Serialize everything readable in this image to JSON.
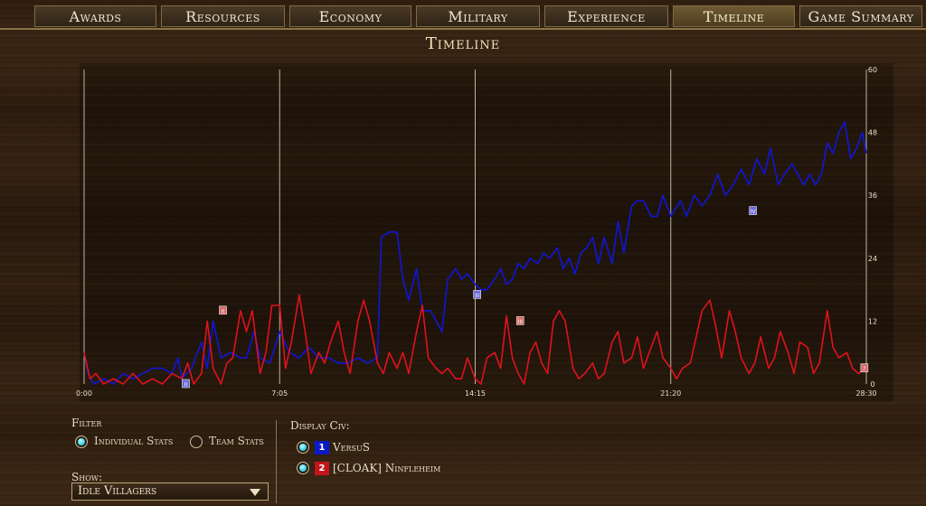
{
  "tabs": [
    {
      "label": "Awards",
      "active": false
    },
    {
      "label": "Resources",
      "active": false
    },
    {
      "label": "Economy",
      "active": false
    },
    {
      "label": "Military",
      "active": false
    },
    {
      "label": "Experience",
      "active": false
    },
    {
      "label": "Timeline",
      "active": true
    },
    {
      "label": "Game Summary",
      "active": false
    }
  ],
  "title": "Timeline",
  "filter": {
    "label": "Filter",
    "options": [
      {
        "label": "Individual Stats",
        "selected": true
      },
      {
        "label": "Team Stats",
        "selected": false
      }
    ]
  },
  "show": {
    "label": "Show:",
    "value": "Idle Villagers"
  },
  "display": {
    "label": "Display Civ:",
    "players": [
      {
        "number": "1",
        "name": "VersuS",
        "color": "#0b19c8",
        "checked": true
      },
      {
        "number": "2",
        "name": "[CLOAK] Ninfleheim",
        "color": "#c4141c",
        "checked": true
      }
    ]
  },
  "chart_data": {
    "type": "line",
    "x_ticks": [
      "0:00",
      "7:05",
      "14:15",
      "21:20",
      "28:30"
    ],
    "y_ticks": [
      "0",
      "12",
      "24",
      "36",
      "48",
      "60"
    ],
    "ylim": [
      0,
      60
    ],
    "x_range_minutes": [
      0,
      28.5
    ],
    "series": [
      {
        "name": "VersuS",
        "color": "#1016d8",
        "points": [
          [
            0,
            6
          ],
          [
            0.2,
            2
          ],
          [
            0.5,
            0
          ],
          [
            1,
            1
          ],
          [
            1.5,
            0
          ],
          [
            2,
            2
          ],
          [
            2.5,
            1
          ],
          [
            3,
            2
          ],
          [
            3.5,
            3
          ],
          [
            4,
            3
          ],
          [
            4.5,
            2
          ],
          [
            4.8,
            5
          ],
          [
            5,
            1
          ],
          [
            5.5,
            3
          ],
          [
            6,
            8
          ],
          [
            6.3,
            3
          ],
          [
            6.6,
            12
          ],
          [
            7,
            5
          ],
          [
            7.5,
            6
          ],
          [
            8,
            5
          ],
          [
            8.3,
            5
          ],
          [
            8.7,
            10
          ],
          [
            9,
            5
          ],
          [
            9.5,
            4
          ],
          [
            10,
            10
          ],
          [
            10.5,
            6
          ],
          [
            11,
            5
          ],
          [
            11.5,
            7
          ],
          [
            12,
            5
          ],
          [
            12.5,
            5
          ],
          [
            13,
            4
          ],
          [
            13.5,
            4
          ],
          [
            14,
            5
          ],
          [
            14.5,
            4
          ],
          [
            15,
            5
          ],
          [
            15.2,
            28
          ],
          [
            15.6,
            29
          ],
          [
            16,
            29
          ],
          [
            16.3,
            20
          ],
          [
            16.6,
            16
          ],
          [
            17,
            22
          ],
          [
            17.3,
            14
          ],
          [
            17.7,
            14
          ],
          [
            18,
            12
          ],
          [
            18.3,
            10
          ],
          [
            18.6,
            20
          ],
          [
            19,
            22
          ],
          [
            19.3,
            20
          ],
          [
            19.6,
            21
          ],
          [
            20,
            19
          ],
          [
            20.3,
            18
          ],
          [
            20.6,
            18
          ],
          [
            21,
            20
          ],
          [
            21.3,
            22
          ],
          [
            21.6,
            19
          ],
          [
            21.9,
            20
          ],
          [
            22.2,
            23
          ],
          [
            22.5,
            22
          ],
          [
            22.8,
            24
          ],
          [
            23.2,
            23
          ],
          [
            23.5,
            25
          ],
          [
            23.8,
            24
          ],
          [
            24.2,
            26
          ],
          [
            24.5,
            22
          ],
          [
            24.8,
            24
          ],
          [
            25.1,
            21
          ],
          [
            25.4,
            25
          ],
          [
            25.7,
            26
          ],
          [
            26,
            28
          ],
          [
            26.3,
            23
          ],
          [
            26.6,
            28
          ],
          [
            27,
            23
          ],
          [
            27.3,
            31
          ],
          [
            27.6,
            25
          ],
          [
            28,
            34
          ],
          [
            28.3,
            35
          ],
          [
            28.6,
            35
          ],
          [
            29,
            32
          ],
          [
            29.3,
            32
          ],
          [
            29.6,
            36
          ],
          [
            30,
            32
          ],
          [
            30.5,
            35
          ],
          [
            30.8,
            32
          ],
          [
            31.2,
            36
          ],
          [
            31.6,
            34
          ],
          [
            32,
            36
          ],
          [
            32.4,
            40
          ],
          [
            32.8,
            36
          ],
          [
            33.2,
            38
          ],
          [
            33.6,
            41
          ],
          [
            34,
            38
          ],
          [
            34.4,
            43
          ],
          [
            34.8,
            40
          ],
          [
            35.1,
            45
          ],
          [
            35.5,
            38
          ],
          [
            35.8,
            40
          ],
          [
            36.2,
            42
          ],
          [
            36.5,
            40
          ],
          [
            36.8,
            38
          ],
          [
            37.1,
            40
          ],
          [
            37.4,
            38
          ],
          [
            37.7,
            40
          ],
          [
            38,
            46
          ],
          [
            38.3,
            44
          ],
          [
            38.6,
            48
          ],
          [
            38.9,
            50
          ],
          [
            39.2,
            43
          ],
          [
            39.5,
            45
          ],
          [
            39.8,
            48
          ],
          [
            40,
            44
          ]
        ]
      },
      {
        "name": "[CLOAK] Ninfleheim",
        "color": "#e0121c",
        "points": [
          [
            0,
            6
          ],
          [
            0.3,
            1
          ],
          [
            0.6,
            2
          ],
          [
            1,
            0
          ],
          [
            1.5,
            1
          ],
          [
            2,
            0
          ],
          [
            2.5,
            2
          ],
          [
            3,
            0
          ],
          [
            3.5,
            1
          ],
          [
            4,
            0
          ],
          [
            4.5,
            2
          ],
          [
            5,
            1
          ],
          [
            5.3,
            4
          ],
          [
            5.6,
            0
          ],
          [
            6,
            2
          ],
          [
            6.3,
            12
          ],
          [
            6.6,
            3
          ],
          [
            7,
            0
          ],
          [
            7.3,
            4
          ],
          [
            7.6,
            5
          ],
          [
            8,
            14
          ],
          [
            8.3,
            10
          ],
          [
            8.6,
            14
          ],
          [
            9,
            2
          ],
          [
            9.3,
            6
          ],
          [
            9.6,
            15
          ],
          [
            10,
            15
          ],
          [
            10.3,
            3
          ],
          [
            10.6,
            8
          ],
          [
            11,
            17
          ],
          [
            11.3,
            10
          ],
          [
            11.6,
            2
          ],
          [
            12,
            6
          ],
          [
            12.3,
            4
          ],
          [
            12.6,
            8
          ],
          [
            13,
            12
          ],
          [
            13.3,
            6
          ],
          [
            13.6,
            2
          ],
          [
            14,
            12
          ],
          [
            14.3,
            16
          ],
          [
            14.6,
            12
          ],
          [
            15,
            4
          ],
          [
            15.3,
            2
          ],
          [
            15.6,
            6
          ],
          [
            16,
            3
          ],
          [
            16.3,
            6
          ],
          [
            16.6,
            2
          ],
          [
            17,
            10
          ],
          [
            17.3,
            15
          ],
          [
            17.6,
            5
          ],
          [
            18,
            3
          ],
          [
            18.3,
            2
          ],
          [
            18.6,
            3
          ],
          [
            19,
            1
          ],
          [
            19.3,
            1
          ],
          [
            19.6,
            5
          ],
          [
            20,
            1
          ],
          [
            20.3,
            0
          ],
          [
            20.6,
            5
          ],
          [
            21,
            6
          ],
          [
            21.3,
            3
          ],
          [
            21.6,
            13
          ],
          [
            21.9,
            5
          ],
          [
            22.2,
            2
          ],
          [
            22.5,
            0
          ],
          [
            22.8,
            6
          ],
          [
            23.1,
            8
          ],
          [
            23.4,
            4
          ],
          [
            23.7,
            2
          ],
          [
            24,
            12
          ],
          [
            24.3,
            14
          ],
          [
            24.6,
            12
          ],
          [
            25,
            3
          ],
          [
            25.3,
            1
          ],
          [
            25.6,
            2
          ],
          [
            26,
            4
          ],
          [
            26.3,
            1
          ],
          [
            26.6,
            2
          ],
          [
            27,
            8
          ],
          [
            27.3,
            10
          ],
          [
            27.6,
            4
          ],
          [
            28,
            5
          ],
          [
            28.3,
            9
          ],
          [
            28.6,
            3
          ],
          [
            29,
            7
          ],
          [
            29.3,
            10
          ],
          [
            29.6,
            5
          ],
          [
            30,
            3
          ],
          [
            30.3,
            1
          ],
          [
            30.6,
            3
          ],
          [
            31,
            4
          ],
          [
            31.3,
            9
          ],
          [
            31.6,
            14
          ],
          [
            32,
            16
          ],
          [
            32.3,
            11
          ],
          [
            32.6,
            5
          ],
          [
            33,
            14
          ],
          [
            33.3,
            10
          ],
          [
            33.6,
            5
          ],
          [
            34,
            2
          ],
          [
            34.3,
            4
          ],
          [
            34.6,
            9
          ],
          [
            35,
            3
          ],
          [
            35.3,
            5
          ],
          [
            35.6,
            10
          ],
          [
            36,
            6
          ],
          [
            36.3,
            2
          ],
          [
            36.6,
            8
          ],
          [
            37,
            7
          ],
          [
            37.3,
            2
          ],
          [
            37.6,
            4
          ],
          [
            38,
            14
          ],
          [
            38.3,
            7
          ],
          [
            38.6,
            5
          ],
          [
            39,
            6
          ],
          [
            39.3,
            3
          ],
          [
            39.6,
            2
          ],
          [
            40,
            3
          ]
        ]
      }
    ],
    "age_markers": [
      {
        "label": "II",
        "series": "VersuS",
        "x": 5.2,
        "y": 0
      },
      {
        "label": "II",
        "series": "[CLOAK] Ninfleheim",
        "x": 7.1,
        "y": 14
      },
      {
        "label": "III",
        "series": "VersuS",
        "x": 20.1,
        "y": 17
      },
      {
        "label": "III",
        "series": "[CLOAK] Ninfleheim",
        "x": 22.3,
        "y": 12
      },
      {
        "label": "IV",
        "series": "VersuS",
        "x": 34.2,
        "y": 33
      },
      {
        "label": "?",
        "series": "[CLOAK] Ninfleheim",
        "x": 39.9,
        "y": 3
      }
    ]
  }
}
